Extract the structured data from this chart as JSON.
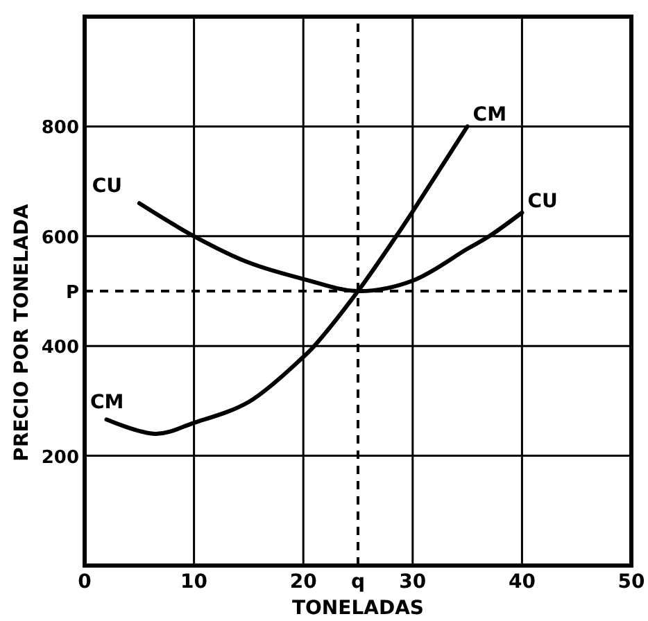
{
  "chart_data": {
    "type": "line",
    "xlabel": "TONELADAS",
    "ylabel": "PRECIO POR TONELADA",
    "xlim": [
      0,
      50
    ],
    "ylim": [
      0,
      1000
    ],
    "xticks": [
      0,
      10,
      20,
      30,
      40,
      50
    ],
    "yticks": [
      200,
      400,
      600,
      800
    ],
    "grid": true,
    "marker": "none",
    "line_style": "solid",
    "ref_lines": [
      {
        "axis": "x",
        "value": 25,
        "label": "q",
        "line_style": "dashed"
      },
      {
        "axis": "y",
        "value": 500,
        "label": "P",
        "line_style": "dashed"
      }
    ],
    "series": [
      {
        "name": "CU",
        "color": "#000000",
        "x": [
          5,
          10,
          15,
          20,
          25,
          30,
          35,
          37,
          40
        ],
        "values": [
          660,
          600,
          552,
          522,
          500,
          519,
          577,
          600,
          643
        ]
      },
      {
        "name": "CM",
        "color": "#000000",
        "x": [
          2,
          6.5,
          10,
          15,
          20,
          21,
          25,
          28.5,
          30,
          35
        ],
        "values": [
          266,
          240,
          260,
          298,
          380,
          400,
          500,
          600,
          645,
          800
        ]
      }
    ]
  }
}
